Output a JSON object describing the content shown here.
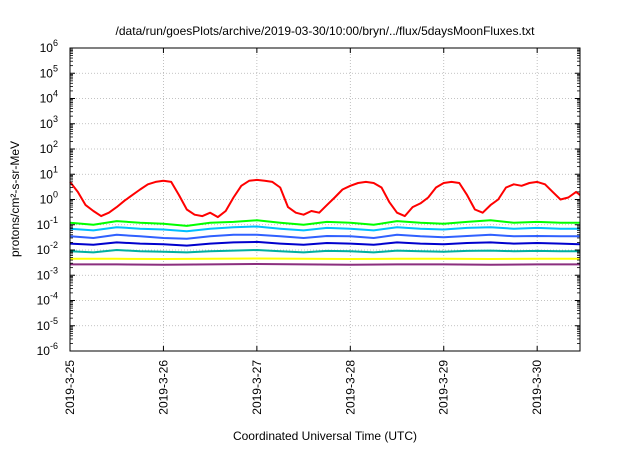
{
  "chart_data": {
    "type": "line",
    "title": "/data/run/goesPlots/archive/2019-03-30/10:00/bryn/../flux/5daysMoonFluxes.txt",
    "xlabel": "Coordinated Universal Time (UTC)",
    "ylabel": "protons/cm²-s-sr-MeV",
    "y_scale": "log",
    "ylim": [
      1e-06,
      1000000.0
    ],
    "xlim": [
      "2019-03-25",
      "2019-03-30 11:00"
    ],
    "x_ticks": [
      "2019-3-25",
      "2019-3-26",
      "2019-3-27",
      "2019-3-28",
      "2019-3-29",
      "2019-3-30"
    ],
    "y_ticks": [
      {
        "base": "10",
        "exp": "-6"
      },
      {
        "base": "10",
        "exp": "-5"
      },
      {
        "base": "10",
        "exp": "-4"
      },
      {
        "base": "10",
        "exp": "-3"
      },
      {
        "base": "10",
        "exp": "-2"
      },
      {
        "base": "10",
        "exp": "-1"
      },
      {
        "base": "10",
        "exp": "0"
      },
      {
        "base": "10",
        "exp": "1"
      },
      {
        "base": "10",
        "exp": "2"
      },
      {
        "base": "10",
        "exp": "3"
      },
      {
        "base": "10",
        "exp": "4"
      },
      {
        "base": "10",
        "exp": "5"
      },
      {
        "base": "10",
        "exp": "6"
      }
    ],
    "grid": true,
    "series": [
      {
        "color": "#ff0000",
        "x": [
          "2019-03-25 00:00",
          "2019-03-25 02:00",
          "2019-03-25 04:00",
          "2019-03-25 06:00",
          "2019-03-25 08:00",
          "2019-03-25 10:00",
          "2019-03-25 12:00",
          "2019-03-25 14:00",
          "2019-03-25 16:00",
          "2019-03-25 18:00",
          "2019-03-25 20:00",
          "2019-03-25 22:00",
          "2019-03-26 00:00",
          "2019-03-26 02:00",
          "2019-03-26 04:00",
          "2019-03-26 06:00",
          "2019-03-26 08:00",
          "2019-03-26 10:00",
          "2019-03-26 12:00",
          "2019-03-26 14:00",
          "2019-03-26 16:00",
          "2019-03-26 18:00",
          "2019-03-26 20:00",
          "2019-03-26 22:00",
          "2019-03-27 00:00",
          "2019-03-27 02:00",
          "2019-03-27 04:00",
          "2019-03-27 06:00",
          "2019-03-27 08:00",
          "2019-03-27 10:00",
          "2019-03-27 12:00",
          "2019-03-27 14:00",
          "2019-03-27 16:00",
          "2019-03-27 18:00",
          "2019-03-27 20:00",
          "2019-03-27 22:00",
          "2019-03-28 00:00",
          "2019-03-28 02:00",
          "2019-03-28 04:00",
          "2019-03-28 06:00",
          "2019-03-28 08:00",
          "2019-03-28 10:00",
          "2019-03-28 12:00",
          "2019-03-28 14:00",
          "2019-03-28 16:00",
          "2019-03-28 18:00",
          "2019-03-28 20:00",
          "2019-03-28 22:00",
          "2019-03-29 00:00",
          "2019-03-29 02:00",
          "2019-03-29 04:00",
          "2019-03-29 06:00",
          "2019-03-29 08:00",
          "2019-03-29 10:00",
          "2019-03-29 12:00",
          "2019-03-29 14:00",
          "2019-03-29 16:00",
          "2019-03-29 18:00",
          "2019-03-29 20:00",
          "2019-03-29 22:00",
          "2019-03-30 00:00",
          "2019-03-30 02:00",
          "2019-03-30 04:00",
          "2019-03-30 06:00",
          "2019-03-30 08:00",
          "2019-03-30 10:00",
          "2019-03-30 11:00"
        ],
        "y": [
          5,
          2,
          0.6,
          0.35,
          0.22,
          0.3,
          0.5,
          0.9,
          1.5,
          2.5,
          4,
          5,
          5.5,
          5,
          1.5,
          0.4,
          0.25,
          0.22,
          0.3,
          0.2,
          0.35,
          1.2,
          3.5,
          5.5,
          6,
          5.5,
          5,
          3,
          0.5,
          0.3,
          0.25,
          0.35,
          0.3,
          0.6,
          1.2,
          2.5,
          3.5,
          4.5,
          5,
          4.5,
          3,
          0.8,
          0.3,
          0.22,
          0.5,
          0.7,
          1.2,
          3,
          4.5,
          5,
          4.5,
          1.5,
          0.4,
          0.3,
          0.6,
          1,
          3,
          4,
          3.5,
          4.5,
          5,
          4,
          2,
          1,
          1.2,
          2,
          1.5
        ]
      },
      {
        "color": "#00ff00",
        "x": [
          "2019-03-25 00:00",
          "2019-03-25 06:00",
          "2019-03-25 12:00",
          "2019-03-25 18:00",
          "2019-03-26 00:00",
          "2019-03-26 06:00",
          "2019-03-26 12:00",
          "2019-03-26 18:00",
          "2019-03-27 00:00",
          "2019-03-27 06:00",
          "2019-03-27 12:00",
          "2019-03-27 18:00",
          "2019-03-28 00:00",
          "2019-03-28 06:00",
          "2019-03-28 12:00",
          "2019-03-28 18:00",
          "2019-03-29 00:00",
          "2019-03-29 06:00",
          "2019-03-29 12:00",
          "2019-03-29 18:00",
          "2019-03-30 00:00",
          "2019-03-30 06:00",
          "2019-03-30 11:00"
        ],
        "y": [
          0.12,
          0.1,
          0.14,
          0.12,
          0.11,
          0.09,
          0.12,
          0.13,
          0.15,
          0.12,
          0.1,
          0.13,
          0.12,
          0.1,
          0.14,
          0.12,
          0.11,
          0.13,
          0.15,
          0.12,
          0.13,
          0.12,
          0.12
        ]
      },
      {
        "color": "#00bfff",
        "x": [
          "2019-03-25 00:00",
          "2019-03-25 06:00",
          "2019-03-25 12:00",
          "2019-03-25 18:00",
          "2019-03-26 00:00",
          "2019-03-26 06:00",
          "2019-03-26 12:00",
          "2019-03-26 18:00",
          "2019-03-27 00:00",
          "2019-03-27 06:00",
          "2019-03-27 12:00",
          "2019-03-27 18:00",
          "2019-03-28 00:00",
          "2019-03-28 06:00",
          "2019-03-28 12:00",
          "2019-03-28 18:00",
          "2019-03-29 00:00",
          "2019-03-29 06:00",
          "2019-03-29 12:00",
          "2019-03-29 18:00",
          "2019-03-30 00:00",
          "2019-03-30 06:00",
          "2019-03-30 11:00"
        ],
        "y": [
          0.07,
          0.06,
          0.08,
          0.07,
          0.065,
          0.055,
          0.07,
          0.08,
          0.085,
          0.07,
          0.06,
          0.075,
          0.07,
          0.06,
          0.08,
          0.07,
          0.065,
          0.075,
          0.08,
          0.07,
          0.075,
          0.07,
          0.07
        ]
      },
      {
        "color": "#3060ff",
        "x": [
          "2019-03-25 00:00",
          "2019-03-25 06:00",
          "2019-03-25 12:00",
          "2019-03-25 18:00",
          "2019-03-26 00:00",
          "2019-03-26 06:00",
          "2019-03-26 12:00",
          "2019-03-26 18:00",
          "2019-03-27 00:00",
          "2019-03-27 06:00",
          "2019-03-27 12:00",
          "2019-03-27 18:00",
          "2019-03-28 00:00",
          "2019-03-28 06:00",
          "2019-03-28 12:00",
          "2019-03-28 18:00",
          "2019-03-29 00:00",
          "2019-03-29 06:00",
          "2019-03-29 12:00",
          "2019-03-29 18:00",
          "2019-03-30 00:00",
          "2019-03-30 06:00",
          "2019-03-30 11:00"
        ],
        "y": [
          0.035,
          0.03,
          0.04,
          0.035,
          0.03,
          0.028,
          0.035,
          0.04,
          0.04,
          0.035,
          0.03,
          0.036,
          0.035,
          0.03,
          0.04,
          0.035,
          0.032,
          0.036,
          0.04,
          0.035,
          0.036,
          0.035,
          0.035
        ]
      },
      {
        "color": "#0000cd",
        "x": [
          "2019-03-25 00:00",
          "2019-03-25 06:00",
          "2019-03-25 12:00",
          "2019-03-25 18:00",
          "2019-03-26 00:00",
          "2019-03-26 06:00",
          "2019-03-26 12:00",
          "2019-03-26 18:00",
          "2019-03-27 00:00",
          "2019-03-27 06:00",
          "2019-03-27 12:00",
          "2019-03-27 18:00",
          "2019-03-28 00:00",
          "2019-03-28 06:00",
          "2019-03-28 12:00",
          "2019-03-28 18:00",
          "2019-03-29 00:00",
          "2019-03-29 06:00",
          "2019-03-29 12:00",
          "2019-03-29 18:00",
          "2019-03-30 00:00",
          "2019-03-30 06:00",
          "2019-03-30 11:00"
        ],
        "y": [
          0.018,
          0.016,
          0.02,
          0.018,
          0.017,
          0.015,
          0.018,
          0.02,
          0.021,
          0.018,
          0.016,
          0.019,
          0.018,
          0.016,
          0.02,
          0.018,
          0.017,
          0.019,
          0.02,
          0.018,
          0.019,
          0.018,
          0.017
        ]
      },
      {
        "color": "#00b0a0",
        "x": [
          "2019-03-25 00:00",
          "2019-03-25 06:00",
          "2019-03-25 12:00",
          "2019-03-25 18:00",
          "2019-03-26 00:00",
          "2019-03-26 06:00",
          "2019-03-26 12:00",
          "2019-03-26 18:00",
          "2019-03-27 00:00",
          "2019-03-27 06:00",
          "2019-03-27 12:00",
          "2019-03-27 18:00",
          "2019-03-28 00:00",
          "2019-03-28 06:00",
          "2019-03-28 12:00",
          "2019-03-28 18:00",
          "2019-03-29 00:00",
          "2019-03-29 06:00",
          "2019-03-29 12:00",
          "2019-03-29 18:00",
          "2019-03-30 00:00",
          "2019-03-30 06:00",
          "2019-03-30 11:00"
        ],
        "y": [
          0.009,
          0.008,
          0.01,
          0.009,
          0.0085,
          0.008,
          0.009,
          0.0095,
          0.01,
          0.009,
          0.008,
          0.0092,
          0.009,
          0.008,
          0.0095,
          0.009,
          0.0085,
          0.0092,
          0.0095,
          0.009,
          0.0092,
          0.009,
          0.009
        ]
      },
      {
        "color": "#ffff00",
        "x": [
          "2019-03-25 00:00",
          "2019-03-25 12:00",
          "2019-03-26 00:00",
          "2019-03-26 12:00",
          "2019-03-27 00:00",
          "2019-03-27 12:00",
          "2019-03-28 00:00",
          "2019-03-28 12:00",
          "2019-03-29 00:00",
          "2019-03-29 12:00",
          "2019-03-30 00:00",
          "2019-03-30 11:00"
        ],
        "y": [
          0.0045,
          0.0045,
          0.0044,
          0.0045,
          0.0046,
          0.0045,
          0.0044,
          0.0045,
          0.0045,
          0.0044,
          0.0045,
          0.0045
        ]
      },
      {
        "color": "#8b2f7f",
        "x": [
          "2019-03-25 00:00",
          "2019-03-25 12:00",
          "2019-03-26 00:00",
          "2019-03-26 12:00",
          "2019-03-27 00:00",
          "2019-03-27 12:00",
          "2019-03-28 00:00",
          "2019-03-28 12:00",
          "2019-03-29 00:00",
          "2019-03-29 12:00",
          "2019-03-30 00:00",
          "2019-03-30 11:00"
        ],
        "y": [
          0.0027,
          0.0027,
          0.0026,
          0.0027,
          0.0028,
          0.0027,
          0.0026,
          0.0027,
          0.0027,
          0.0026,
          0.0027,
          0.0027
        ]
      }
    ]
  }
}
